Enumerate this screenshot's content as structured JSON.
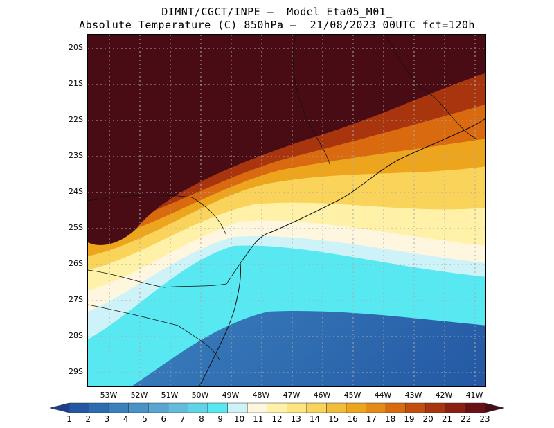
{
  "title": {
    "line1": "DIMNT/CGCT/INPE –  Model Eta05_M01_",
    "line2": "Absolute Temperature (C) 850hPa –  21/08/2023 00UTC fct=120h"
  },
  "map": {
    "lat_labels": [
      "20S",
      "21S",
      "22S",
      "23S",
      "24S",
      "25S",
      "26S",
      "27S",
      "28S",
      "29S"
    ],
    "lon_labels": [
      "53W",
      "52W",
      "51W",
      "50W",
      "49W",
      "48W",
      "47W",
      "46W",
      "45W",
      "44W",
      "43W",
      "42W",
      "41W"
    ],
    "grid": true
  },
  "colorbar": {
    "labels": [
      "1",
      "2",
      "3",
      "4",
      "5",
      "6",
      "7",
      "8",
      "9",
      "10",
      "11",
      "12",
      "13",
      "14",
      "15",
      "16",
      "17",
      "18",
      "19",
      "20",
      "21",
      "22",
      "23"
    ],
    "colors": [
      "#1d3d8f",
      "#2457a3",
      "#2e6cb0",
      "#3a80bd",
      "#4a93c9",
      "#5aa6d3",
      "#64bcdc",
      "#5fd3e8",
      "#57e8f2",
      "#cdf3f8",
      "#fff6e0",
      "#fff2a8",
      "#ffe57f",
      "#fad35a",
      "#f2bd3a",
      "#eca51c",
      "#e58a14",
      "#d96a0f",
      "#c44e0e",
      "#a8350e",
      "#8a1f12",
      "#6b0f16",
      "#4a0c14"
    ]
  }
}
